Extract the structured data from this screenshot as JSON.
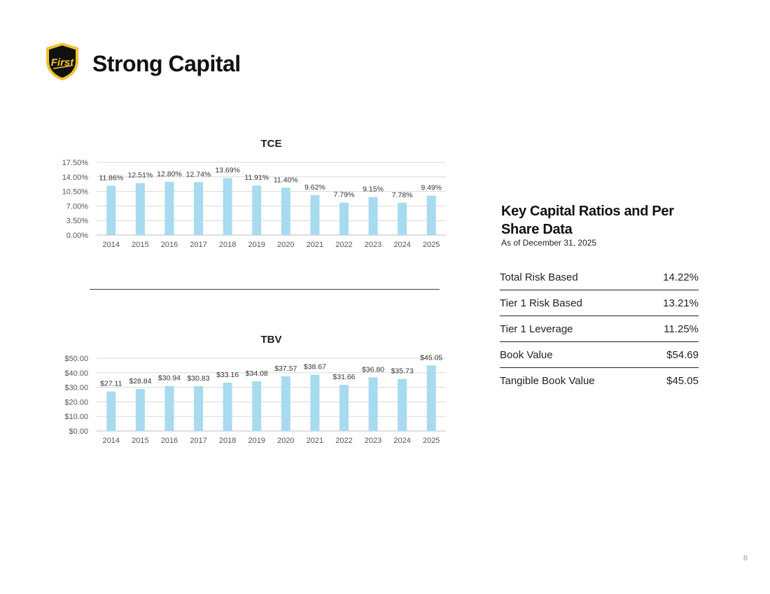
{
  "header": {
    "title": "Strong Capital",
    "logo_text": "First",
    "brand_colors": {
      "shield_fill": "#111111",
      "shield_gold": "#f2c230"
    }
  },
  "chart_data": [
    {
      "id": "tce",
      "type": "bar",
      "title": "TCE",
      "categories": [
        "2014",
        "2015",
        "2016",
        "2017",
        "2018",
        "2019",
        "2020",
        "2021",
        "2022",
        "2023",
        "2024",
        "2025"
      ],
      "values": [
        11.86,
        12.51,
        12.8,
        12.74,
        13.69,
        11.91,
        11.4,
        9.62,
        7.79,
        9.15,
        7.78,
        9.49
      ],
      "value_labels": [
        "11.86%",
        "12.51%",
        "12.80%",
        "12.74%",
        "13.69%",
        "11.91%",
        "11.40%",
        "9.62%",
        "7.79%",
        "9.15%",
        "7.78%",
        "9.49%"
      ],
      "y_ticks": [
        0,
        3.5,
        7,
        10.5,
        14,
        17.5
      ],
      "y_tick_labels": [
        "0.00%",
        "3.50%",
        "7.00%",
        "10.50%",
        "14.00%",
        "17.50%"
      ],
      "ylim": [
        0,
        17.5
      ],
      "grid": true,
      "bar_color": "#a8daf0"
    },
    {
      "id": "tbv",
      "type": "bar",
      "title": "TBV",
      "categories": [
        "2014",
        "2015",
        "2016",
        "2017",
        "2018",
        "2019",
        "2020",
        "2021",
        "2022",
        "2023",
        "2024",
        "2025"
      ],
      "values": [
        27.11,
        28.84,
        30.94,
        30.83,
        33.16,
        34.08,
        37.57,
        38.67,
        31.66,
        36.8,
        35.73,
        45.05
      ],
      "value_labels": [
        "$27.11",
        "$28.84",
        "$30.94",
        "$30.83",
        "$33.16",
        "$34.08",
        "$37.57",
        "$38.67",
        "$31.66",
        "$36.80",
        "$35.73",
        "$45.05"
      ],
      "y_ticks": [
        0,
        10,
        20,
        30,
        40,
        50
      ],
      "y_tick_labels": [
        "$0.00",
        "$10.00",
        "$20.00",
        "$30.00",
        "$40.00",
        "$50.00"
      ],
      "ylim": [
        0,
        50
      ],
      "grid": true,
      "bar_color": "#a8daf0"
    }
  ],
  "key_ratios": {
    "title": "Key Capital Ratios and Per Share Data",
    "subtitle": "As of December 31, 2025",
    "rows": [
      {
        "label": "Total Risk Based",
        "value": "14.22%"
      },
      {
        "label": "Tier 1 Risk Based",
        "value": "13.21%"
      },
      {
        "label": "Tier 1 Leverage",
        "value": "11.25%"
      },
      {
        "label": "Book Value",
        "value": "$54.69"
      },
      {
        "label": "Tangible Book Value",
        "value": "$45.05"
      }
    ]
  },
  "footer": {
    "page_number": "6"
  }
}
